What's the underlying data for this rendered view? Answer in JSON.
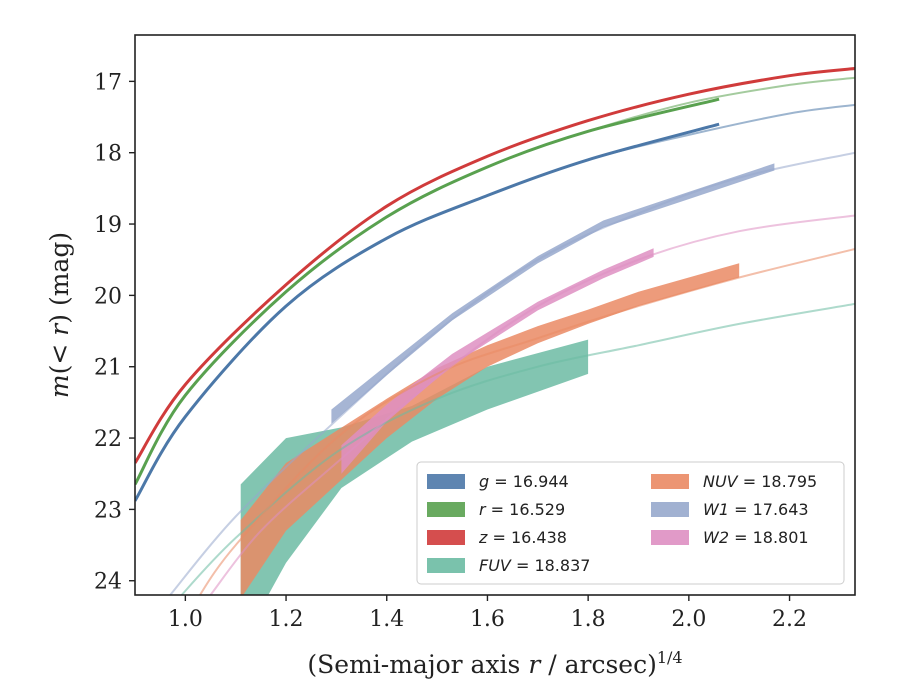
{
  "chart_data": {
    "type": "line",
    "xlabel": "(Semi-major axis r / arcsec)",
    "xlabel_parts": {
      "prefix": "(Semi-major axis ",
      "var": "r",
      "suffix": " / arcsec)",
      "exponent": "1/4"
    },
    "ylabel": "m(< r) (mag)",
    "ylabel_parts": {
      "var1": "m",
      "mid": "(< ",
      "var2": "r",
      "suffix": ") (mag)"
    },
    "xlim": [
      0.9,
      2.33
    ],
    "ylim": [
      24.2,
      16.35
    ],
    "y_inverted": true,
    "xticks": [
      1.0,
      1.2,
      1.4,
      1.6,
      1.8,
      2.0,
      2.2
    ],
    "xtick_labels": [
      "1.0",
      "1.2",
      "1.4",
      "1.6",
      "1.8",
      "2.0",
      "2.2"
    ],
    "yticks": [
      17,
      18,
      19,
      20,
      21,
      22,
      23,
      24
    ],
    "ytick_labels": [
      "17",
      "18",
      "19",
      "20",
      "21",
      "22",
      "23",
      "24"
    ],
    "grid": false,
    "legend_position": "lower-right",
    "legend_columns": 2,
    "series": [
      {
        "name": "g = 16.944",
        "label_var": "g",
        "label_value": "= 16.944",
        "color": "#4c78a8",
        "model": {
          "x": [
            0.9,
            1.0,
            1.2,
            1.4,
            1.6,
            1.8,
            2.0,
            2.2,
            2.33
          ],
          "y": [
            22.88,
            21.7,
            20.15,
            19.2,
            18.6,
            18.1,
            17.75,
            17.45,
            17.33
          ]
        },
        "profile": {
          "x": [
            0.9,
            1.0,
            1.2,
            1.4,
            1.6,
            1.8,
            2.06
          ],
          "y": [
            22.88,
            21.7,
            20.15,
            19.2,
            18.6,
            18.1,
            17.6
          ],
          "err_low": [
            0,
            0,
            0,
            0,
            0,
            0,
            0
          ],
          "err_high": [
            0,
            0,
            0,
            0,
            0,
            0,
            0
          ]
        }
      },
      {
        "name": "r = 16.529",
        "label_var": "r",
        "label_value": "= 16.529",
        "color": "#59a14f",
        "model": {
          "x": [
            0.9,
            1.0,
            1.2,
            1.4,
            1.6,
            1.8,
            2.0,
            2.2,
            2.33
          ],
          "y": [
            22.65,
            21.4,
            19.95,
            18.9,
            18.2,
            17.7,
            17.3,
            17.05,
            16.95
          ]
        },
        "profile": {
          "x": [
            0.9,
            1.0,
            1.2,
            1.4,
            1.6,
            1.8,
            2.06
          ],
          "y": [
            22.65,
            21.4,
            19.95,
            18.9,
            18.2,
            17.7,
            17.25
          ],
          "err_low": [
            0,
            0,
            0,
            0,
            0,
            0,
            0
          ],
          "err_high": [
            0,
            0,
            0,
            0,
            0,
            0,
            0
          ]
        }
      },
      {
        "name": "z = 16.438",
        "label_var": "z",
        "label_value": "= 16.438",
        "color": "#d03b3b",
        "model": {
          "x": [
            0.9,
            1.0,
            1.2,
            1.4,
            1.6,
            1.8,
            2.0,
            2.2,
            2.33
          ],
          "y": [
            22.35,
            21.25,
            19.85,
            18.75,
            18.05,
            17.55,
            17.18,
            16.92,
            16.82
          ]
        },
        "profile": {
          "x": [
            0.9,
            1.0,
            1.2,
            1.4,
            1.6,
            1.8,
            2.0,
            2.2,
            2.33
          ],
          "y": [
            22.35,
            21.25,
            19.85,
            18.75,
            18.05,
            17.55,
            17.18,
            16.92,
            16.82
          ],
          "err_low": [
            0,
            0,
            0,
            0,
            0,
            0,
            0,
            0,
            0
          ],
          "err_high": [
            0,
            0,
            0,
            0,
            0,
            0,
            0,
            0,
            0
          ]
        }
      },
      {
        "name": "FUV = 18.837",
        "label_var": "FUV",
        "label_value": "= 18.837",
        "color": "#6cbba3",
        "model": {
          "x": [
            0.98,
            1.1,
            1.3,
            1.5,
            1.7,
            1.9,
            2.1,
            2.33
          ],
          "y": [
            24.3,
            23.4,
            22.2,
            21.45,
            21.0,
            20.7,
            20.4,
            20.12
          ]
        },
        "profile": {
          "x": [
            1.11,
            1.2,
            1.31,
            1.45,
            1.6,
            1.8
          ],
          "y": [
            23.5,
            22.65,
            22.0,
            21.6,
            21.3,
            21.1
          ],
          "err_low": [
            1.4,
            1.1,
            0.7,
            0.45,
            0.3,
            0.0
          ],
          "err_high": [
            0.85,
            0.65,
            0.15,
            0.05,
            0.3,
            0.48
          ]
        }
      },
      {
        "name": "NUV = 18.795",
        "label_var": "NUV",
        "label_value": "= 18.795",
        "color": "#ea8a64",
        "model": {
          "x": [
            1.02,
            1.1,
            1.3,
            1.5,
            1.7,
            1.9,
            2.1,
            2.33
          ],
          "y": [
            24.3,
            23.5,
            22.0,
            21.1,
            20.6,
            20.15,
            19.75,
            19.35
          ]
        },
        "profile": {
          "x": [
            1.11,
            1.2,
            1.3,
            1.4,
            1.5,
            1.6,
            1.7,
            1.8,
            1.9,
            2.0,
            2.1
          ],
          "y": [
            23.6,
            22.7,
            22.15,
            21.65,
            21.2,
            20.85,
            20.55,
            20.3,
            20.05,
            19.85,
            19.65
          ],
          "err_low": [
            0.65,
            0.6,
            0.5,
            0.35,
            0.25,
            0.15,
            0.12,
            0.1,
            0.1,
            0.1,
            0.1
          ],
          "err_high": [
            0.45,
            0.35,
            0.25,
            0.2,
            0.18,
            0.15,
            0.12,
            0.1,
            0.1,
            0.1,
            0.1
          ]
        }
      },
      {
        "name": "W1 = 17.643",
        "label_var": "W1",
        "label_value": "= 17.643",
        "color": "#97a8cc",
        "model": {
          "x": [
            0.97,
            1.1,
            1.3,
            1.5,
            1.7,
            1.9,
            2.1,
            2.33
          ],
          "y": [
            24.2,
            23.1,
            21.75,
            20.5,
            19.5,
            18.85,
            18.35,
            18.0
          ]
        },
        "profile": {
          "x": [
            1.29,
            1.4,
            1.53,
            1.7,
            1.83,
            2.0,
            2.17
          ],
          "y": [
            21.7,
            21.05,
            20.3,
            19.5,
            19.0,
            18.6,
            18.2
          ],
          "err_low": [
            0.1,
            0.07,
            0.05,
            0.05,
            0.05,
            0.05,
            0.05
          ],
          "err_high": [
            0.1,
            0.07,
            0.05,
            0.05,
            0.05,
            0.05,
            0.05
          ]
        }
      },
      {
        "name": "W2 = 18.801",
        "label_var": "W2",
        "label_value": "= 18.801",
        "color": "#de8fc2",
        "model": {
          "x": [
            1.05,
            1.15,
            1.3,
            1.5,
            1.7,
            1.9,
            2.1,
            2.33
          ],
          "y": [
            24.2,
            23.3,
            22.35,
            21.15,
            20.15,
            19.5,
            19.1,
            18.88
          ]
        },
        "profile": {
          "x": [
            1.31,
            1.4,
            1.53,
            1.7,
            1.83,
            1.93
          ],
          "y": [
            22.3,
            21.65,
            20.9,
            20.15,
            19.7,
            19.4
          ],
          "err_low": [
            0.2,
            0.12,
            0.08,
            0.06,
            0.06,
            0.06
          ],
          "err_high": [
            0.2,
            0.12,
            0.08,
            0.06,
            0.06,
            0.06
          ]
        }
      }
    ]
  }
}
